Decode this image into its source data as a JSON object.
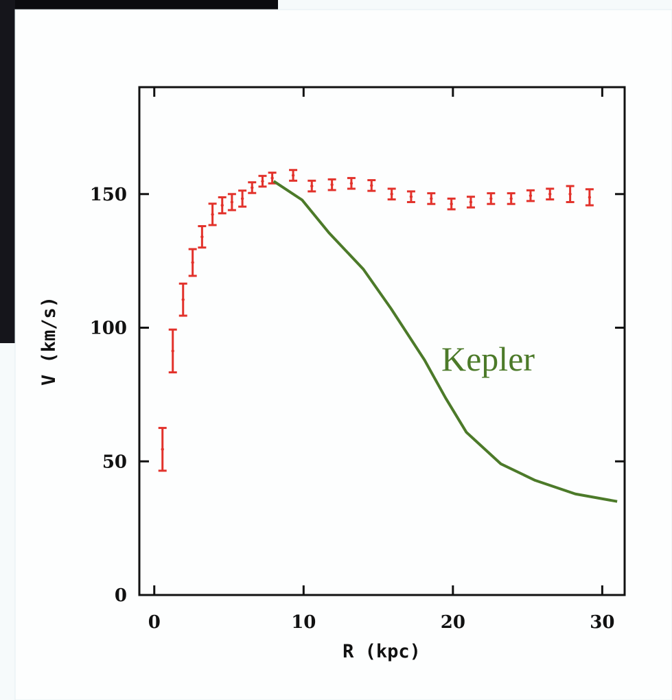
{
  "chart_data": {
    "type": "errorbar",
    "x_label": "R (kpc)",
    "y_label": "V (km/s)",
    "xlim": [
      -1,
      31.5
    ],
    "ylim": [
      0,
      190
    ],
    "xticks": [
      0,
      10,
      20,
      30
    ],
    "yticks": [
      0,
      50,
      100,
      150
    ],
    "series": [
      {
        "type": "errorbar",
        "color": "#e2322b",
        "x": [
          0.55,
          1.24,
          1.93,
          2.57,
          3.2,
          3.9,
          4.55,
          5.2,
          5.9,
          6.55,
          7.25,
          7.9,
          9.3,
          10.55,
          11.9,
          13.2,
          14.55,
          15.9,
          17.2,
          18.55,
          19.9,
          21.2,
          22.55,
          23.9,
          25.2,
          26.5,
          27.85,
          29.15
        ],
        "values": [
          54.5,
          91.3,
          110.5,
          124.4,
          134,
          142.4,
          145.8,
          147,
          148.3,
          152.4,
          154.8,
          156,
          157,
          153,
          153.5,
          154,
          153.2,
          150,
          149,
          148.3,
          146.3,
          147,
          148.3,
          148.3,
          149.4,
          150,
          150,
          148.8
        ],
        "errors": [
          8,
          8,
          6,
          5,
          4,
          4,
          3,
          3,
          3,
          2,
          2,
          2,
          2,
          2,
          2,
          2,
          2,
          2,
          2,
          2,
          2,
          2,
          2,
          2,
          2,
          2,
          3,
          3
        ]
      },
      {
        "type": "line",
        "name": "Kepler",
        "color": "#4c7a29",
        "x": [
          8,
          9.9,
          11.7,
          14,
          15.85,
          18.1,
          19.5,
          20.9,
          23.2,
          25.5,
          28.2,
          31
        ],
        "values": [
          154.8,
          147.8,
          135.5,
          121.9,
          107.2,
          87.9,
          73.8,
          60.9,
          49.1,
          42.9,
          37.8,
          35
        ]
      }
    ]
  }
}
